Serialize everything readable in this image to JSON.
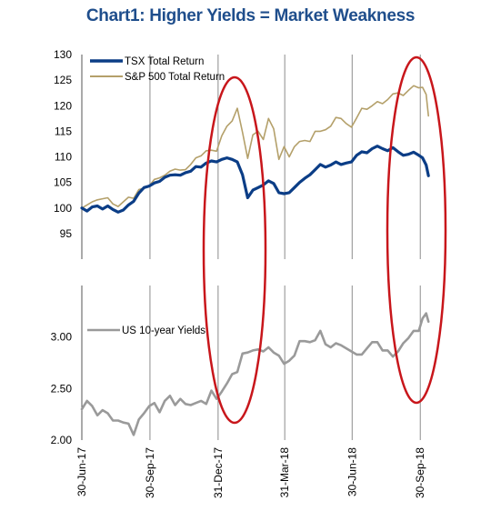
{
  "title": "Chart1: Higher Yields = Market Weakness",
  "colors": {
    "title": "#1f4e8c",
    "tsx": "#0b3d86",
    "sp500": "#b4a06a",
    "yields": "#9a9a9a",
    "highlight": "#c8161b",
    "grid": "#8c8c8c"
  },
  "chart_data": [
    {
      "type": "line",
      "title": "",
      "xlabel": "",
      "ylabel": "",
      "ylim": [
        90,
        130
      ],
      "y_ticks": [
        "130",
        "125",
        "120",
        "115",
        "110",
        "105",
        "100",
        "95"
      ],
      "x_range": [
        "2017-06-30",
        "2018-10-12"
      ],
      "legend_position": "top-left",
      "series": [
        {
          "name": "TSX Total Return",
          "color": "#0b3d86",
          "points": [
            [
              "2017-06-30",
              100.0
            ],
            [
              "2017-07-07",
              99.4
            ],
            [
              "2017-07-14",
              100.2
            ],
            [
              "2017-07-21",
              100.4
            ],
            [
              "2017-07-28",
              99.8
            ],
            [
              "2017-08-04",
              100.4
            ],
            [
              "2017-08-11",
              99.7
            ],
            [
              "2017-08-18",
              99.2
            ],
            [
              "2017-08-25",
              99.6
            ],
            [
              "2017-09-01",
              100.6
            ],
            [
              "2017-09-08",
              101.3
            ],
            [
              "2017-09-15",
              102.9
            ],
            [
              "2017-09-22",
              104.0
            ],
            [
              "2017-09-29",
              104.3
            ],
            [
              "2017-10-06",
              104.9
            ],
            [
              "2017-10-13",
              105.2
            ],
            [
              "2017-10-20",
              106.0
            ],
            [
              "2017-10-27",
              106.4
            ],
            [
              "2017-11-03",
              106.5
            ],
            [
              "2017-11-10",
              106.4
            ],
            [
              "2017-11-17",
              106.9
            ],
            [
              "2017-11-24",
              107.2
            ],
            [
              "2017-12-01",
              108.1
            ],
            [
              "2017-12-08",
              108.0
            ],
            [
              "2017-12-15",
              108.8
            ],
            [
              "2017-12-22",
              109.2
            ],
            [
              "2017-12-29",
              109.0
            ],
            [
              "2018-01-05",
              109.5
            ],
            [
              "2018-01-12",
              109.8
            ],
            [
              "2018-01-19",
              109.5
            ],
            [
              "2018-01-26",
              109.0
            ],
            [
              "2018-02-02",
              106.5
            ],
            [
              "2018-02-09",
              102.0
            ],
            [
              "2018-02-16",
              103.5
            ],
            [
              "2018-02-23",
              104.0
            ],
            [
              "2018-03-02",
              104.5
            ],
            [
              "2018-03-09",
              105.3
            ],
            [
              "2018-03-16",
              104.8
            ],
            [
              "2018-03-23",
              103.0
            ],
            [
              "2018-03-30",
              102.8
            ],
            [
              "2018-04-06",
              103.0
            ],
            [
              "2018-04-13",
              104.0
            ],
            [
              "2018-04-20",
              105.0
            ],
            [
              "2018-04-27",
              105.8
            ],
            [
              "2018-05-04",
              106.5
            ],
            [
              "2018-05-11",
              107.5
            ],
            [
              "2018-05-18",
              108.5
            ],
            [
              "2018-05-25",
              108.0
            ],
            [
              "2018-06-01",
              108.4
            ],
            [
              "2018-06-08",
              109.0
            ],
            [
              "2018-06-15",
              108.5
            ],
            [
              "2018-06-22",
              108.8
            ],
            [
              "2018-06-29",
              109.0
            ],
            [
              "2018-07-06",
              110.3
            ],
            [
              "2018-07-13",
              111.0
            ],
            [
              "2018-07-20",
              110.8
            ],
            [
              "2018-07-27",
              111.6
            ],
            [
              "2018-08-03",
              112.1
            ],
            [
              "2018-08-10",
              111.6
            ],
            [
              "2018-08-17",
              111.2
            ],
            [
              "2018-08-24",
              111.8
            ],
            [
              "2018-08-31",
              111.0
            ],
            [
              "2018-09-07",
              110.3
            ],
            [
              "2018-09-14",
              110.5
            ],
            [
              "2018-09-21",
              110.9
            ],
            [
              "2018-09-28",
              110.3
            ],
            [
              "2018-10-03",
              109.8
            ],
            [
              "2018-10-08",
              108.4
            ],
            [
              "2018-10-11",
              106.3
            ]
          ]
        },
        {
          "name": "S&P 500 Total Return",
          "color": "#b4a06a",
          "points": [
            [
              "2017-06-30",
              100.0
            ],
            [
              "2017-07-07",
              100.6
            ],
            [
              "2017-07-14",
              101.2
            ],
            [
              "2017-07-21",
              101.6
            ],
            [
              "2017-07-28",
              101.8
            ],
            [
              "2017-08-04",
              102.0
            ],
            [
              "2017-08-11",
              100.8
            ],
            [
              "2017-08-18",
              100.3
            ],
            [
              "2017-08-25",
              101.2
            ],
            [
              "2017-09-01",
              102.1
            ],
            [
              "2017-09-08",
              101.9
            ],
            [
              "2017-09-15",
              103.6
            ],
            [
              "2017-09-22",
              103.9
            ],
            [
              "2017-09-29",
              104.3
            ],
            [
              "2017-10-06",
              105.6
            ],
            [
              "2017-10-13",
              105.9
            ],
            [
              "2017-10-20",
              106.4
            ],
            [
              "2017-10-27",
              107.2
            ],
            [
              "2017-11-03",
              107.6
            ],
            [
              "2017-11-10",
              107.4
            ],
            [
              "2017-11-17",
              107.5
            ],
            [
              "2017-11-24",
              108.5
            ],
            [
              "2017-12-01",
              109.8
            ],
            [
              "2017-12-08",
              110.2
            ],
            [
              "2017-12-15",
              111.2
            ],
            [
              "2017-12-22",
              111.3
            ],
            [
              "2017-12-29",
              111.1
            ],
            [
              "2018-01-05",
              114.1
            ],
            [
              "2018-01-12",
              116.0
            ],
            [
              "2018-01-19",
              117.0
            ],
            [
              "2018-01-26",
              119.5
            ],
            [
              "2018-02-02",
              114.8
            ],
            [
              "2018-02-09",
              109.7
            ],
            [
              "2018-02-16",
              114.3
            ],
            [
              "2018-02-23",
              115.0
            ],
            [
              "2018-03-02",
              113.4
            ],
            [
              "2018-03-09",
              117.5
            ],
            [
              "2018-03-16",
              115.5
            ],
            [
              "2018-03-23",
              109.5
            ],
            [
              "2018-03-30",
              112.0
            ],
            [
              "2018-04-06",
              110.0
            ],
            [
              "2018-04-13",
              112.0
            ],
            [
              "2018-04-20",
              113.0
            ],
            [
              "2018-04-27",
              113.2
            ],
            [
              "2018-05-04",
              113.0
            ],
            [
              "2018-05-11",
              115.0
            ],
            [
              "2018-05-18",
              115.0
            ],
            [
              "2018-05-25",
              115.3
            ],
            [
              "2018-06-01",
              116.0
            ],
            [
              "2018-06-08",
              117.7
            ],
            [
              "2018-06-15",
              117.5
            ],
            [
              "2018-06-22",
              116.5
            ],
            [
              "2018-06-29",
              115.8
            ],
            [
              "2018-07-06",
              117.6
            ],
            [
              "2018-07-13",
              119.5
            ],
            [
              "2018-07-20",
              119.3
            ],
            [
              "2018-07-27",
              120.0
            ],
            [
              "2018-08-03",
              120.8
            ],
            [
              "2018-08-10",
              120.4
            ],
            [
              "2018-08-17",
              121.2
            ],
            [
              "2018-08-24",
              122.3
            ],
            [
              "2018-08-31",
              122.5
            ],
            [
              "2018-09-07",
              122.0
            ],
            [
              "2018-09-14",
              123.0
            ],
            [
              "2018-09-21",
              123.9
            ],
            [
              "2018-09-28",
              123.5
            ],
            [
              "2018-10-03",
              123.6
            ],
            [
              "2018-10-08",
              122.2
            ],
            [
              "2018-10-11",
              118.0
            ]
          ]
        }
      ]
    },
    {
      "type": "line",
      "title": "",
      "xlabel": "",
      "ylabel": "",
      "ylim": [
        2.0,
        3.5
      ],
      "y_ticks": [
        "3.00",
        "2.50",
        "2.00"
      ],
      "x_range": [
        "2017-06-30",
        "2018-10-12"
      ],
      "x_ticks": [
        "30-Jun-17",
        "30-Sep-17",
        "31-Dec-17",
        "31-Mar-18",
        "30-Jun-18",
        "30-Sep-18"
      ],
      "legend_position": "top-left",
      "series": [
        {
          "name": "US 10-year Yields",
          "color": "#9a9a9a",
          "points": [
            [
              "2017-06-30",
              2.3
            ],
            [
              "2017-07-07",
              2.38
            ],
            [
              "2017-07-14",
              2.33
            ],
            [
              "2017-07-21",
              2.24
            ],
            [
              "2017-07-28",
              2.29
            ],
            [
              "2017-08-04",
              2.26
            ],
            [
              "2017-08-11",
              2.19
            ],
            [
              "2017-08-18",
              2.19
            ],
            [
              "2017-08-25",
              2.17
            ],
            [
              "2017-09-01",
              2.16
            ],
            [
              "2017-09-08",
              2.05
            ],
            [
              "2017-09-15",
              2.2
            ],
            [
              "2017-09-22",
              2.26
            ],
            [
              "2017-09-29",
              2.33
            ],
            [
              "2017-10-06",
              2.36
            ],
            [
              "2017-10-13",
              2.27
            ],
            [
              "2017-10-20",
              2.38
            ],
            [
              "2017-10-27",
              2.43
            ],
            [
              "2017-11-03",
              2.34
            ],
            [
              "2017-11-10",
              2.4
            ],
            [
              "2017-11-17",
              2.35
            ],
            [
              "2017-11-24",
              2.34
            ],
            [
              "2017-12-01",
              2.36
            ],
            [
              "2017-12-08",
              2.38
            ],
            [
              "2017-12-15",
              2.35
            ],
            [
              "2017-12-22",
              2.48
            ],
            [
              "2017-12-29",
              2.4
            ],
            [
              "2018-01-05",
              2.47
            ],
            [
              "2018-01-12",
              2.55
            ],
            [
              "2018-01-19",
              2.64
            ],
            [
              "2018-01-26",
              2.66
            ],
            [
              "2018-02-02",
              2.84
            ],
            [
              "2018-02-09",
              2.85
            ],
            [
              "2018-02-16",
              2.87
            ],
            [
              "2018-02-23",
              2.88
            ],
            [
              "2018-03-02",
              2.86
            ],
            [
              "2018-03-09",
              2.9
            ],
            [
              "2018-03-16",
              2.85
            ],
            [
              "2018-03-23",
              2.82
            ],
            [
              "2018-03-30",
              2.74
            ],
            [
              "2018-04-06",
              2.77
            ],
            [
              "2018-04-13",
              2.82
            ],
            [
              "2018-04-20",
              2.96
            ],
            [
              "2018-04-27",
              2.96
            ],
            [
              "2018-05-04",
              2.95
            ],
            [
              "2018-05-11",
              2.97
            ],
            [
              "2018-05-18",
              3.06
            ],
            [
              "2018-05-25",
              2.93
            ],
            [
              "2018-06-01",
              2.9
            ],
            [
              "2018-06-08",
              2.94
            ],
            [
              "2018-06-15",
              2.92
            ],
            [
              "2018-06-22",
              2.89
            ],
            [
              "2018-06-29",
              2.86
            ],
            [
              "2018-07-06",
              2.83
            ],
            [
              "2018-07-13",
              2.83
            ],
            [
              "2018-07-20",
              2.89
            ],
            [
              "2018-07-27",
              2.95
            ],
            [
              "2018-08-03",
              2.95
            ],
            [
              "2018-08-10",
              2.87
            ],
            [
              "2018-08-17",
              2.87
            ],
            [
              "2018-08-24",
              2.81
            ],
            [
              "2018-08-31",
              2.86
            ],
            [
              "2018-09-07",
              2.94
            ],
            [
              "2018-09-14",
              2.99
            ],
            [
              "2018-09-21",
              3.06
            ],
            [
              "2018-09-28",
              3.06
            ],
            [
              "2018-10-03",
              3.18
            ],
            [
              "2018-10-08",
              3.23
            ],
            [
              "2018-10-11",
              3.15
            ]
          ]
        }
      ]
    }
  ]
}
